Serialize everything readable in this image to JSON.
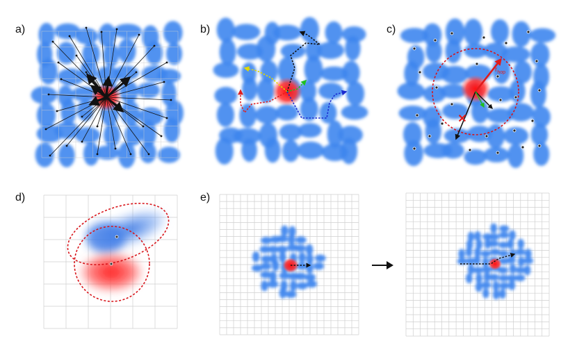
{
  "panels": {
    "a": {
      "label": "a)"
    },
    "b": {
      "label": "b)"
    },
    "c": {
      "label": "c)",
      "hop_label": "r",
      "hop_sub": "hop"
    },
    "d": {
      "label": "d)"
    },
    "e": {
      "label": "e)"
    }
  },
  "colors": {
    "cell": "#3f86ee",
    "cell_glow": "#8fb8f7",
    "particle": "#f42020",
    "dashed_circle": "#d8141a",
    "grid": "#cfcfcf",
    "arrow_red": "#e02020",
    "arrow_yellow": "#e8e000",
    "arrow_green": "#20c020",
    "arrow_blue": "#1a2ad0",
    "arrow_black": "#111111"
  },
  "icons": {
    "transition": "right-arrow-icon"
  }
}
